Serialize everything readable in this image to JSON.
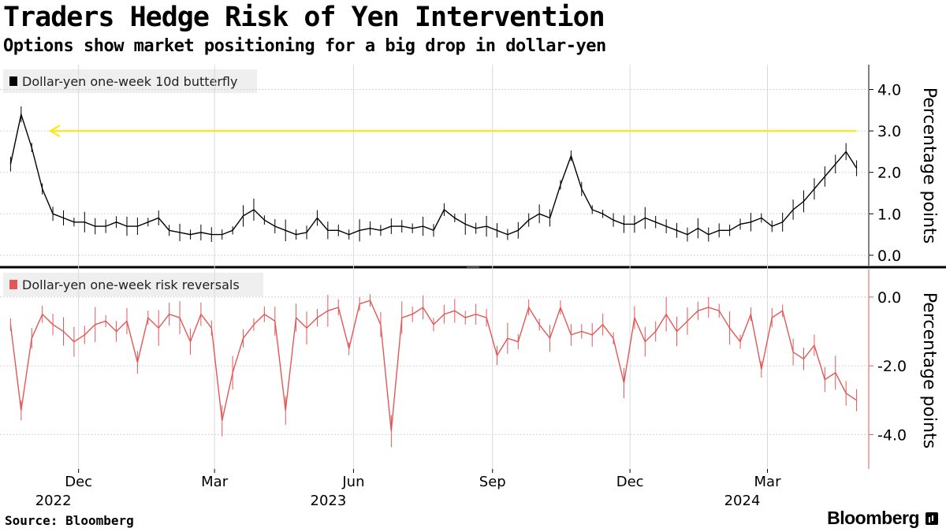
{
  "title": "Traders Hedge Risk of Yen Intervention",
  "subtitle": "Options show market positioning for a big drop in dollar-yen",
  "source": "Source: Bloomberg",
  "brand": "Bloomberg",
  "chart_data": [
    {
      "type": "line",
      "legend": "Dollar-yen one-week 10d butterfly",
      "ylabel": "Percentage points",
      "yticks": [
        "4.0",
        "3.0",
        "2.0",
        "1.0",
        "0.0"
      ],
      "ylim": [
        -0.25,
        4.6
      ],
      "color": "#000000",
      "reference_line": {
        "y": 3.0,
        "color": "#ffe600",
        "direction": "left"
      },
      "series": [
        {
          "x": [
            "2022-10-17",
            "2022-10-24",
            "2022-10-31",
            "2022-11-07",
            "2022-11-14",
            "2022-11-21",
            "2022-11-28",
            "2022-12-05",
            "2022-12-12",
            "2022-12-19",
            "2022-12-26",
            "2023-01-02",
            "2023-01-09",
            "2023-01-16",
            "2023-01-23",
            "2023-01-30",
            "2023-02-06",
            "2023-02-13",
            "2023-02-20",
            "2023-02-27",
            "2023-03-06",
            "2023-03-13",
            "2023-03-20",
            "2023-03-27",
            "2023-04-03",
            "2023-04-10",
            "2023-04-17",
            "2023-04-24",
            "2023-05-01",
            "2023-05-08",
            "2023-05-15",
            "2023-05-22",
            "2023-05-29",
            "2023-06-05",
            "2023-06-12",
            "2023-06-19",
            "2023-06-26",
            "2023-07-03",
            "2023-07-10",
            "2023-07-17",
            "2023-07-24",
            "2023-07-31",
            "2023-08-07",
            "2023-08-14",
            "2023-08-21",
            "2023-08-28",
            "2023-09-04",
            "2023-09-11",
            "2023-09-18",
            "2023-09-25",
            "2023-10-02",
            "2023-10-09",
            "2023-10-16",
            "2023-10-23",
            "2023-10-30",
            "2023-11-06",
            "2023-11-13",
            "2023-11-20",
            "2023-11-27",
            "2023-12-04",
            "2023-12-11",
            "2023-12-18",
            "2023-12-25",
            "2024-01-01",
            "2024-01-08",
            "2024-01-15",
            "2024-01-22",
            "2024-01-29",
            "2024-02-05",
            "2024-02-12",
            "2024-02-19",
            "2024-02-26",
            "2024-03-04",
            "2024-03-11",
            "2024-03-18",
            "2024-03-25",
            "2024-04-01",
            "2024-04-08",
            "2024-04-15",
            "2024-04-22",
            "2024-04-29"
          ],
          "y": [
            2.2,
            3.4,
            2.6,
            1.6,
            1.0,
            0.9,
            0.8,
            0.8,
            0.7,
            0.7,
            0.8,
            0.7,
            0.7,
            0.8,
            0.9,
            0.6,
            0.55,
            0.5,
            0.55,
            0.5,
            0.5,
            0.6,
            0.95,
            1.1,
            0.85,
            0.7,
            0.6,
            0.5,
            0.55,
            0.9,
            0.6,
            0.6,
            0.5,
            0.6,
            0.65,
            0.6,
            0.7,
            0.7,
            0.65,
            0.7,
            0.6,
            1.1,
            0.9,
            0.75,
            0.65,
            0.7,
            0.6,
            0.5,
            0.6,
            0.85,
            1.0,
            0.9,
            1.7,
            2.4,
            1.6,
            1.1,
            1.0,
            0.85,
            0.75,
            0.75,
            0.9,
            0.8,
            0.7,
            0.6,
            0.5,
            0.65,
            0.5,
            0.6,
            0.6,
            0.75,
            0.8,
            0.9,
            0.7,
            0.8,
            1.1,
            1.3,
            1.6,
            1.9,
            2.2,
            2.5,
            2.1
          ]
        }
      ]
    },
    {
      "type": "line",
      "legend": "Dollar-yen one-week risk reversals",
      "ylabel": "Percentage points",
      "yticks": [
        "0.0",
        "-2.0",
        "-4.0"
      ],
      "ylim": [
        -5.0,
        0.8
      ],
      "color": "#e35757",
      "series": [
        {
          "x": [
            "2022-10-17",
            "2022-10-24",
            "2022-10-31",
            "2022-11-07",
            "2022-11-14",
            "2022-11-21",
            "2022-11-28",
            "2022-12-05",
            "2022-12-12",
            "2022-12-19",
            "2022-12-26",
            "2023-01-02",
            "2023-01-09",
            "2023-01-16",
            "2023-01-23",
            "2023-01-30",
            "2023-02-06",
            "2023-02-13",
            "2023-02-20",
            "2023-02-27",
            "2023-03-06",
            "2023-03-13",
            "2023-03-20",
            "2023-03-27",
            "2023-04-03",
            "2023-04-10",
            "2023-04-17",
            "2023-04-24",
            "2023-05-01",
            "2023-05-08",
            "2023-05-15",
            "2023-05-22",
            "2023-05-29",
            "2023-06-05",
            "2023-06-12",
            "2023-06-19",
            "2023-06-26",
            "2023-07-03",
            "2023-07-10",
            "2023-07-17",
            "2023-07-24",
            "2023-07-31",
            "2023-08-07",
            "2023-08-14",
            "2023-08-21",
            "2023-08-28",
            "2023-09-04",
            "2023-09-11",
            "2023-09-18",
            "2023-09-25",
            "2023-10-02",
            "2023-10-09",
            "2023-10-16",
            "2023-10-23",
            "2023-10-30",
            "2023-11-06",
            "2023-11-13",
            "2023-11-20",
            "2023-11-27",
            "2023-12-04",
            "2023-12-11",
            "2023-12-18",
            "2023-12-25",
            "2024-01-01",
            "2024-01-08",
            "2024-01-15",
            "2024-01-22",
            "2024-01-29",
            "2024-02-05",
            "2024-02-12",
            "2024-02-19",
            "2024-02-26",
            "2024-03-04",
            "2024-03-11",
            "2024-03-18",
            "2024-03-25",
            "2024-04-01",
            "2024-04-08",
            "2024-04-15",
            "2024-04-22",
            "2024-04-29"
          ],
          "y": [
            -0.8,
            -3.3,
            -1.2,
            -0.5,
            -0.8,
            -1.0,
            -1.3,
            -1.1,
            -0.8,
            -0.7,
            -1.0,
            -0.7,
            -1.9,
            -0.6,
            -0.9,
            -0.5,
            -0.6,
            -1.3,
            -0.5,
            -0.9,
            -3.6,
            -2.2,
            -1.2,
            -0.8,
            -0.5,
            -0.7,
            -3.3,
            -0.6,
            -0.9,
            -0.6,
            -0.4,
            -0.3,
            -1.5,
            -0.2,
            -0.1,
            -0.8,
            -3.9,
            -0.6,
            -0.5,
            -0.3,
            -0.8,
            -0.5,
            -0.4,
            -0.6,
            -0.5,
            -0.6,
            -1.7,
            -1.2,
            -1.3,
            -0.3,
            -0.8,
            -1.2,
            -0.3,
            -1.1,
            -1.0,
            -1.1,
            -0.8,
            -1.2,
            -2.5,
            -0.6,
            -1.3,
            -1.0,
            -0.5,
            -1.0,
            -0.7,
            -0.4,
            -0.3,
            -0.4,
            -0.9,
            -1.3,
            -0.5,
            -2.1,
            -0.6,
            -0.4,
            -1.6,
            -1.8,
            -1.4,
            -2.4,
            -2.2,
            -2.8,
            -3.0
          ]
        }
      ]
    }
  ],
  "x_axis": {
    "months": [
      {
        "label": "Dec",
        "date": "2022-12-01"
      },
      {
        "label": "Mar",
        "date": "2023-03-01"
      },
      {
        "label": "Jun",
        "date": "2023-06-01"
      },
      {
        "label": "Sep",
        "date": "2023-09-01"
      },
      {
        "label": "Dec",
        "date": "2023-12-01"
      },
      {
        "label": "Mar",
        "date": "2024-03-01"
      }
    ],
    "years": [
      {
        "label": "2022",
        "date": "2022-12-01"
      },
      {
        "label": "2023",
        "date": "2023-06-01"
      },
      {
        "label": "2024",
        "date": "2024-03-01"
      }
    ]
  }
}
